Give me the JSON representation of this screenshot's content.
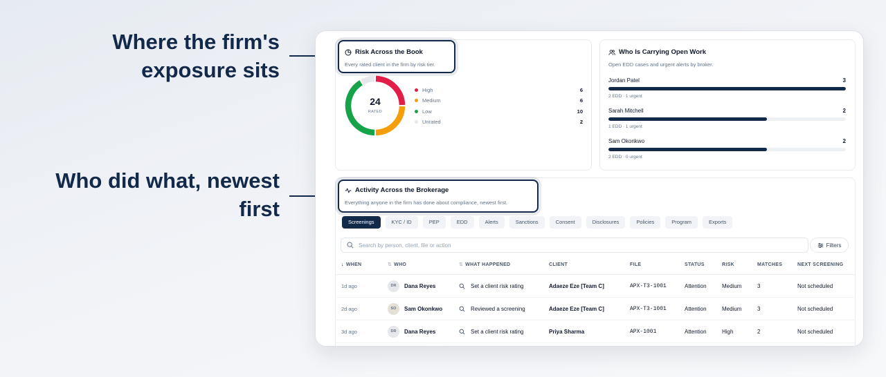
{
  "callouts": {
    "exposure": "Where the firm's exposure sits",
    "activity": "Who did what, newest first"
  },
  "risk_card": {
    "title": "Risk Across the Book",
    "subtitle": "Every rated client in the firm by risk tier.",
    "total": "24",
    "total_label": "RATED",
    "legend": [
      {
        "label": "High",
        "value": "6",
        "color": "#e11d48"
      },
      {
        "label": "Medium",
        "value": "6",
        "color": "#f59e0b"
      },
      {
        "label": "Low",
        "value": "10",
        "color": "#16a34a"
      },
      {
        "label": "Unrated",
        "value": "2",
        "color": "#e5e7eb"
      }
    ]
  },
  "work_card": {
    "title": "Who Is Carrying Open Work",
    "subtitle": "Open EDD cases and urgent alerts by broker.",
    "brokers": [
      {
        "name": "Jordan Patel",
        "count": "3",
        "meta": "2 EDD · 1 urgent",
        "fill": 1.0
      },
      {
        "name": "Sarah Mitchell",
        "count": "2",
        "meta": "1 EDD · 1 urgent",
        "fill": 0.667
      },
      {
        "name": "Sam Okonkwo",
        "count": "2",
        "meta": "2 EDD · 0 urgent",
        "fill": 0.667
      }
    ]
  },
  "activity_card": {
    "title": "Activity Across the Brokerage",
    "subtitle": "Everything anyone in the firm has done about compliance, newest first.",
    "tabs": [
      "Screenings",
      "KYC / ID",
      "PEP",
      "EDD",
      "Alerts",
      "Sanctions",
      "Consent",
      "Disclosures",
      "Policies",
      "Program",
      "Exports"
    ],
    "active_tab": "Screenings",
    "search_placeholder": "Search by person, client, file or action",
    "filters_label": "Filters",
    "columns": [
      "WHEN",
      "WHO",
      "WHAT HAPPENED",
      "CLIENT",
      "FILE",
      "STATUS",
      "RISK",
      "MATCHES",
      "NEXT SCREENING"
    ],
    "rows": [
      {
        "when": "1d ago",
        "initials": "DR",
        "who": "Dana Reyes",
        "what": "Set a client risk rating",
        "client": "Adaeze Eze [Team C]",
        "file": "APX-T3-1001",
        "status": "Attention",
        "risk": "Medium",
        "matches": "3",
        "next": "Not scheduled"
      },
      {
        "when": "2d ago",
        "initials": "SO",
        "who": "Sam Okonkwo",
        "what": "Reviewed a screening",
        "client": "Adaeze Eze [Team C]",
        "file": "APX-T3-1001",
        "status": "Attention",
        "risk": "Medium",
        "matches": "3",
        "next": "Not scheduled"
      },
      {
        "when": "3d ago",
        "initials": "DR",
        "who": "Dana Reyes",
        "what": "Set a client risk rating",
        "client": "Priya Sharma",
        "file": "APX-1001",
        "status": "Attention",
        "risk": "High",
        "matches": "2",
        "next": "Not scheduled"
      }
    ]
  },
  "chart_data": {
    "type": "pie",
    "title": "Risk Across the Book",
    "categories": [
      "High",
      "Medium",
      "Low",
      "Unrated"
    ],
    "values": [
      6,
      6,
      10,
      2
    ],
    "colors": [
      "#e11d48",
      "#f59e0b",
      "#16a34a",
      "#e5e7eb"
    ]
  }
}
